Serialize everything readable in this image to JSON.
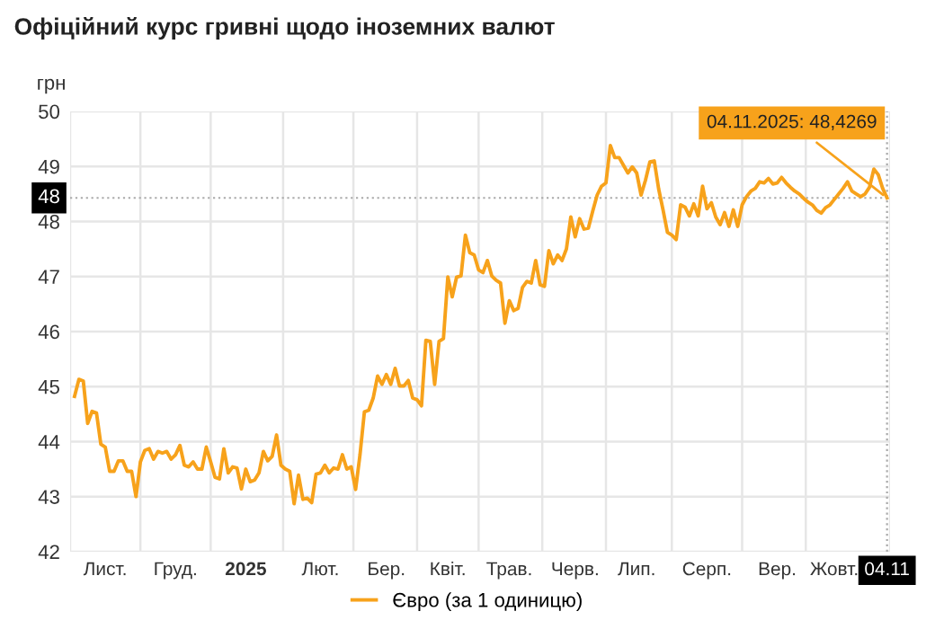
{
  "chart_data": {
    "type": "line",
    "title": "Офіційний курс гривні щодо іноземних валют",
    "ylabel": "грн",
    "categories": [
      null,
      null,
      null,
      null,
      null,
      null,
      null,
      "Лист.",
      null,
      null,
      null,
      null,
      null,
      null,
      null,
      null,
      null,
      null,
      null,
      null,
      null,
      null,
      null,
      "Груд.",
      null,
      null,
      null,
      null,
      null,
      null,
      null,
      null,
      null,
      null,
      null,
      null,
      null,
      null,
      null,
      "2025",
      null,
      null,
      null,
      null,
      null,
      null,
      null,
      null,
      null,
      null,
      null,
      null,
      null,
      null,
      null,
      null,
      "Лют.",
      null,
      null,
      null,
      null,
      null,
      null,
      null,
      null,
      null,
      null,
      null,
      null,
      null,
      null,
      "Бер.",
      null,
      null,
      null,
      null,
      null,
      null,
      null,
      null,
      null,
      null,
      null,
      null,
      null,
      "Квіт.",
      null,
      null,
      null,
      null,
      null,
      null,
      null,
      null,
      null,
      null,
      null,
      null,
      null,
      "Трав.",
      null,
      null,
      null,
      null,
      null,
      null,
      null,
      null,
      null,
      null,
      null,
      null,
      null,
      null,
      "Черв.",
      null,
      null,
      null,
      null,
      null,
      null,
      null,
      null,
      null,
      null,
      null,
      null,
      null,
      "Лип.",
      null,
      null,
      null,
      null,
      null,
      null,
      null,
      null,
      null,
      null,
      null,
      null,
      null,
      null,
      null,
      "Серп.",
      null,
      null,
      null,
      null,
      null,
      null,
      null,
      null,
      null,
      null,
      null,
      null,
      null,
      null,
      null,
      "Вер.",
      null,
      null,
      null,
      null,
      null,
      null,
      null,
      null,
      null,
      null,
      null,
      null,
      "Жовт.",
      null,
      null,
      null,
      null,
      null,
      null,
      null,
      null,
      null,
      null,
      null,
      "04.11"
    ],
    "series": [
      {
        "name": "Євро (за 1 одиницю)",
        "color": "#f7a21b",
        "values": [
          44.82,
          45.13,
          45.1,
          44.33,
          44.55,
          44.52,
          43.95,
          43.9,
          43.46,
          43.46,
          43.65,
          43.65,
          43.46,
          43.46,
          43.0,
          43.63,
          43.84,
          43.87,
          43.68,
          43.82,
          43.79,
          43.82,
          43.68,
          43.76,
          43.93,
          43.57,
          43.54,
          43.63,
          43.5,
          43.5,
          43.9,
          43.63,
          43.35,
          43.32,
          43.87,
          43.43,
          43.54,
          43.52,
          43.14,
          43.5,
          43.27,
          43.3,
          43.43,
          43.82,
          43.65,
          43.73,
          44.12,
          43.57,
          43.5,
          43.46,
          42.87,
          43.39,
          42.95,
          42.97,
          42.89,
          43.41,
          43.43,
          43.57,
          43.43,
          43.52,
          43.5,
          43.76,
          43.5,
          43.54,
          43.13,
          43.76,
          44.54,
          44.57,
          44.79,
          45.19,
          45.04,
          45.22,
          45.04,
          45.33,
          45.01,
          45.01,
          45.11,
          44.79,
          44.76,
          44.65,
          45.84,
          45.82,
          45.04,
          45.82,
          45.87,
          46.99,
          46.63,
          46.99,
          47.01,
          47.75,
          47.43,
          47.39,
          47.12,
          47.07,
          47.29,
          47.01,
          46.93,
          46.88,
          46.15,
          46.56,
          46.38,
          46.42,
          46.8,
          46.91,
          46.88,
          47.29,
          46.85,
          46.82,
          47.47,
          47.23,
          47.39,
          47.29,
          47.5,
          48.08,
          47.72,
          48.05,
          47.86,
          47.88,
          48.19,
          48.48,
          48.64,
          48.7,
          49.38,
          49.16,
          49.16,
          49.02,
          48.88,
          48.99,
          48.88,
          48.48,
          48.75,
          49.08,
          49.1,
          48.59,
          48.21,
          47.8,
          47.75,
          47.67,
          48.3,
          48.26,
          48.1,
          48.32,
          48.1,
          48.64,
          48.23,
          48.34,
          48.08,
          47.94,
          48.16,
          47.91,
          48.21,
          47.91,
          48.3,
          48.45,
          48.55,
          48.6,
          48.72,
          48.7,
          48.78,
          48.68,
          48.7,
          48.8,
          48.7,
          48.62,
          48.55,
          48.5,
          48.42,
          48.35,
          48.3,
          48.2,
          48.15,
          48.25,
          48.3,
          48.4,
          48.5,
          48.6,
          48.72,
          48.55,
          48.5,
          48.45,
          48.5,
          48.62,
          48.95,
          48.85,
          48.6,
          48.4269
        ]
      }
    ],
    "ylim": [
      42,
      50
    ],
    "yticks": [
      42,
      43,
      44,
      45,
      46,
      47,
      48,
      49,
      50
    ],
    "ref_lines": [
      {
        "axis": "y",
        "value": 48.4269,
        "label": "48",
        "color": "#aaaaaa",
        "line_style": "dotted"
      },
      {
        "axis": "x",
        "value": "04.11",
        "color": "#aaaaaa",
        "line_style": "dotted"
      }
    ],
    "annotations": [
      {
        "text": "04.11.2025: 48,4269",
        "x": "04.11",
        "y": 48.4269
      }
    ],
    "grid": true,
    "legend": "bottom",
    "marker": "none",
    "line_style": "solid"
  }
}
